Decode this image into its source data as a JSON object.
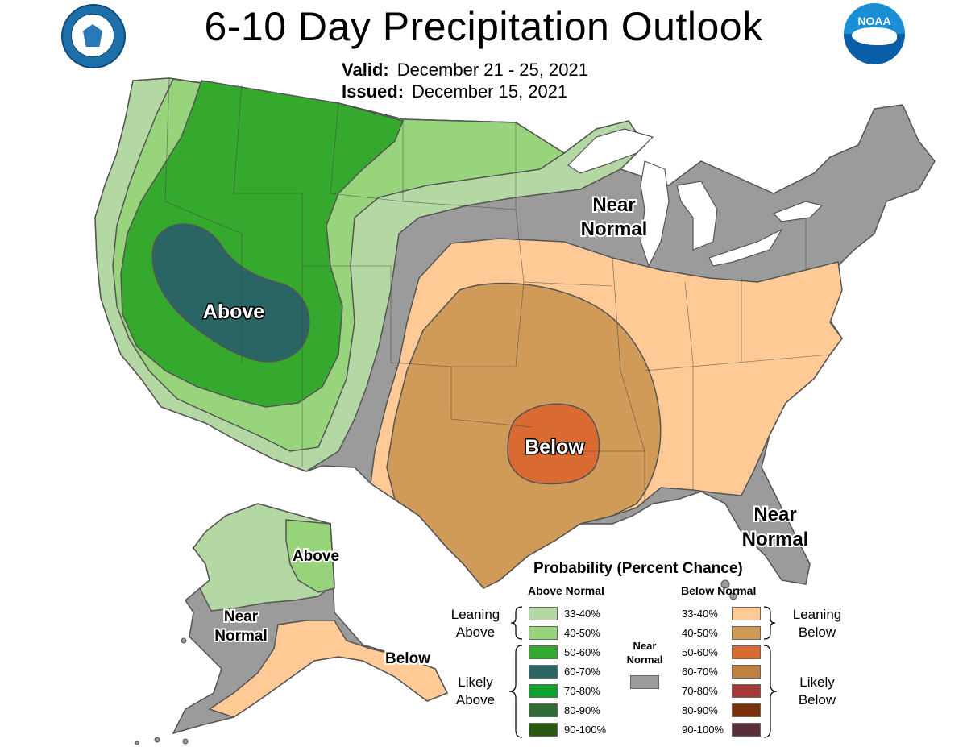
{
  "title": "6-10 Day Precipitation Outlook",
  "valid": {
    "label": "Valid:",
    "value": "December 21 - 25, 2021"
  },
  "issued": {
    "label": "Issued:",
    "value": "December 15, 2021"
  },
  "logos": {
    "left": "department-of-commerce-seal",
    "right": "noaa-logo"
  },
  "map_labels": {
    "above_conus": "Above",
    "below_conus": "Below",
    "near_normal_north_1": "Near",
    "near_normal_north_2": "Normal",
    "near_normal_se_1": "Near",
    "near_normal_se_2": "Normal",
    "above_alaska": "Above",
    "near_normal_ak_1": "Near",
    "near_normal_ak_2": "Normal",
    "below_alaska": "Below"
  },
  "legend": {
    "title": "Probability (Percent Chance)",
    "above_header": "Above Normal",
    "below_header": "Below Normal",
    "near_header_1": "Near",
    "near_header_2": "Normal",
    "leaning_above_1": "Leaning",
    "leaning_above_2": "Above",
    "likely_above_1": "Likely",
    "likely_above_2": "Above",
    "leaning_below_1": "Leaning",
    "leaning_below_2": "Below",
    "likely_below_1": "Likely",
    "likely_below_2": "Below",
    "above_items": [
      {
        "label": "33-40%",
        "color": "#b4d8a4"
      },
      {
        "label": "40-50%",
        "color": "#98d47c"
      },
      {
        "label": "50-60%",
        "color": "#35a82e"
      },
      {
        "label": "60-70%",
        "color": "#2a6566"
      },
      {
        "label": "70-80%",
        "color": "#0fa02e"
      },
      {
        "label": "80-90%",
        "color": "#2f6b34"
      },
      {
        "label": "90-100%",
        "color": "#2a5a10"
      }
    ],
    "below_items": [
      {
        "label": "33-40%",
        "color": "#ffca96"
      },
      {
        "label": "40-50%",
        "color": "#d09a58"
      },
      {
        "label": "50-60%",
        "color": "#d86a32"
      },
      {
        "label": "60-70%",
        "color": "#c08040"
      },
      {
        "label": "70-80%",
        "color": "#a43a38"
      },
      {
        "label": "80-90%",
        "color": "#7a3008"
      },
      {
        "label": "90-100%",
        "color": "#5a3036"
      }
    ],
    "near_normal_color": "#9b9b9b"
  },
  "colors": {
    "near_normal": "#9b9b9b",
    "above_33_40": "#b4d8a4",
    "above_40_50": "#98d47c",
    "above_50_60": "#35a82e",
    "above_60_70": "#2a6566",
    "below_33_40": "#ffca96",
    "below_40_50": "#d09a58",
    "below_50_60": "#d86a32"
  }
}
